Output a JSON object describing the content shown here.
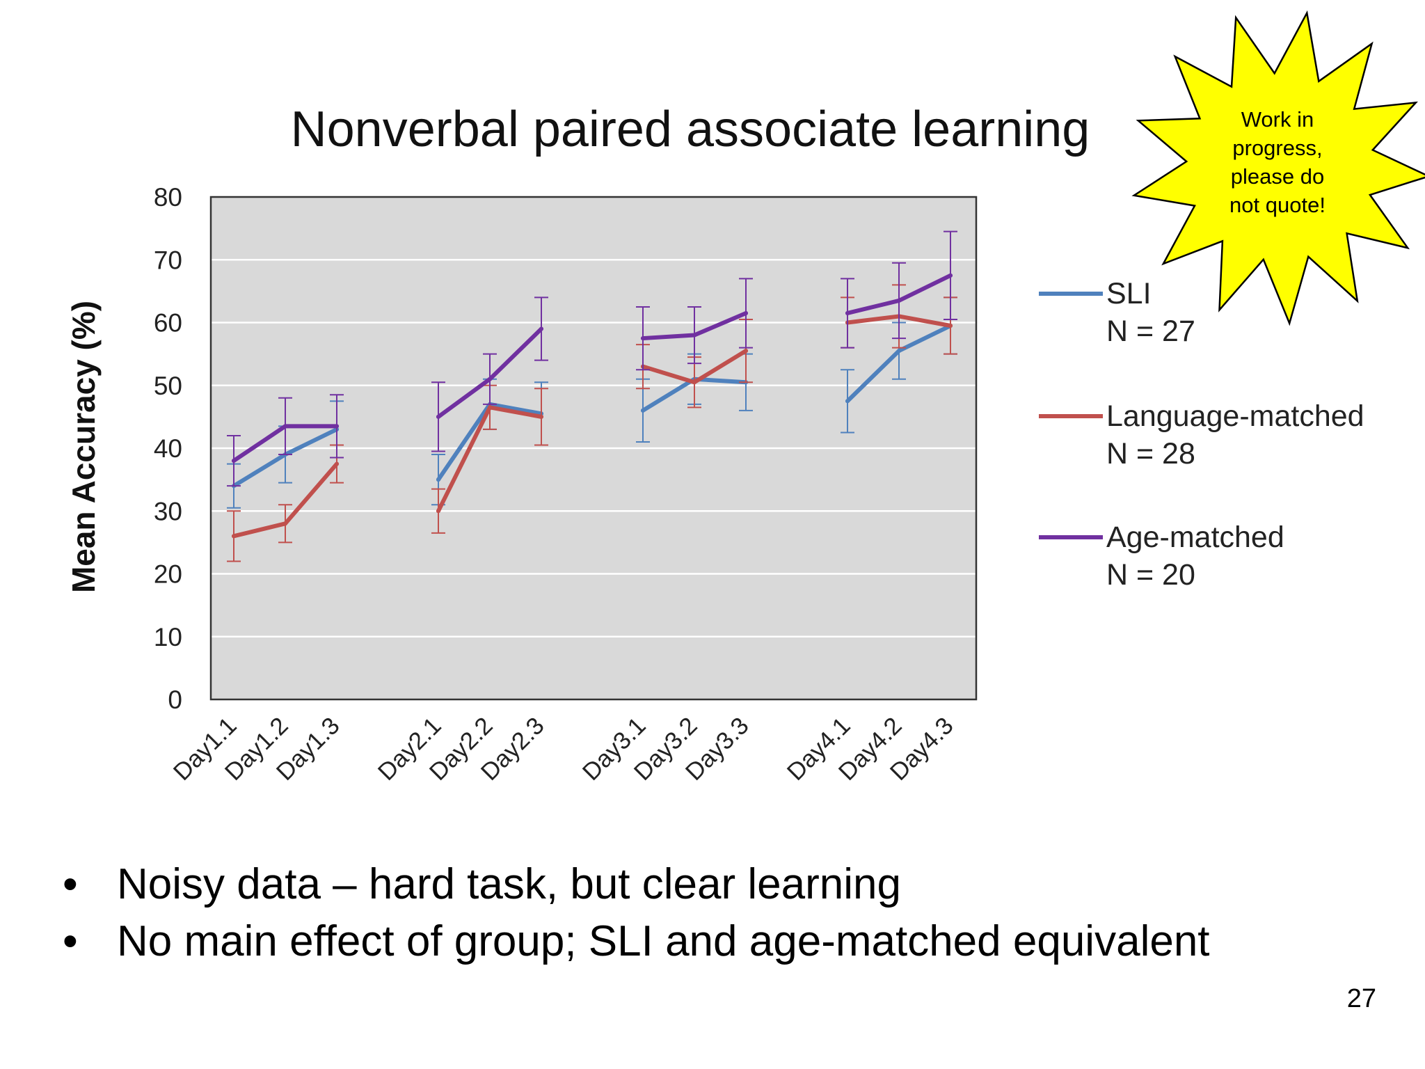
{
  "slide": {
    "bullets": [
      "Noisy data – hard task, but clear learning",
      "No main effect of group; SLI and age-matched equivalent"
    ],
    "page_number": "27",
    "starburst": {
      "lines": [
        "Work in",
        "progress,",
        "please do",
        "not quote!"
      ],
      "fill": "#FFFF00"
    }
  },
  "chart_data": {
    "type": "line",
    "title": "Nonverbal paired associate learning",
    "xlabel": "",
    "ylabel": "Mean Accuracy (%)",
    "ylim": [
      0,
      80
    ],
    "yticks": [
      0,
      10,
      20,
      30,
      40,
      50,
      60,
      70,
      80
    ],
    "grid": true,
    "plot_background": "#D9D9D9",
    "legend_position": "right",
    "categories": [
      "Day1.1",
      "Day1.2",
      "Day1.3",
      "Day2.1",
      "Day2.2",
      "Day2.3",
      "Day3.1",
      "Day3.2",
      "Day3.3",
      "Day4.1",
      "Day4.2",
      "Day4.3"
    ],
    "series": [
      {
        "name": "SLI",
        "n_label": "N = 27",
        "color": "#4F81BD",
        "values": [
          34,
          39,
          43,
          35,
          47,
          45.5,
          46,
          51,
          50.5,
          47.5,
          55.5,
          59.5
        ],
        "error": [
          3.5,
          4.5,
          4.5,
          4,
          4,
          5,
          5,
          4,
          4.5,
          5,
          4.5,
          4.5
        ]
      },
      {
        "name": "Language-matched",
        "n_label": "N = 28",
        "color": "#C0504D",
        "values": [
          26,
          28,
          37.5,
          30,
          46.5,
          45,
          53,
          50.5,
          55.5,
          60,
          61,
          59.5
        ],
        "error": [
          4,
          3,
          3,
          3.5,
          3.5,
          4.5,
          3.5,
          4,
          5,
          4,
          5,
          4.5
        ]
      },
      {
        "name": "Age-matched",
        "n_label": "N = 20",
        "color": "#7030A0",
        "values": [
          38,
          43.5,
          43.5,
          45,
          51,
          59,
          57.5,
          58,
          61.5,
          61.5,
          63.5,
          67.5
        ],
        "error": [
          4,
          4.5,
          5,
          5.5,
          4,
          5,
          5,
          4.5,
          5.5,
          5.5,
          6,
          7
        ]
      }
    ]
  }
}
